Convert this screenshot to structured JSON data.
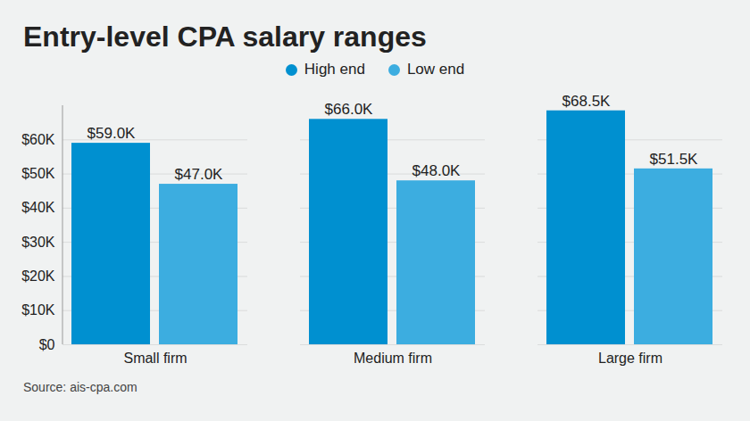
{
  "chart_data": {
    "type": "bar",
    "title": "Entry-level CPA salary ranges",
    "categories": [
      "Small firm",
      "Medium firm",
      "Large firm"
    ],
    "series": [
      {
        "name": "High end",
        "color": "#0090d0",
        "values": [
          59.0,
          66.0,
          68.5
        ],
        "value_labels": [
          "$59.0K",
          "$66.0K",
          "$68.5K"
        ]
      },
      {
        "name": "Low end",
        "color": "#3cade0",
        "values": [
          47.0,
          48.0,
          51.5
        ],
        "value_labels": [
          "$47.0K",
          "$48.0K",
          "$51.5K"
        ]
      }
    ],
    "ylim": [
      0,
      70
    ],
    "yticks": [
      {
        "value": 0,
        "label": "$0"
      },
      {
        "value": 10,
        "label": "$10K"
      },
      {
        "value": 20,
        "label": "$20K"
      },
      {
        "value": 30,
        "label": "$30K"
      },
      {
        "value": 40,
        "label": "$40K"
      },
      {
        "value": 50,
        "label": "$50K"
      },
      {
        "value": 60,
        "label": "$60K"
      }
    ],
    "grid": true,
    "legend": "top",
    "data_labels": true,
    "source": "Source: ais-cpa.com"
  }
}
